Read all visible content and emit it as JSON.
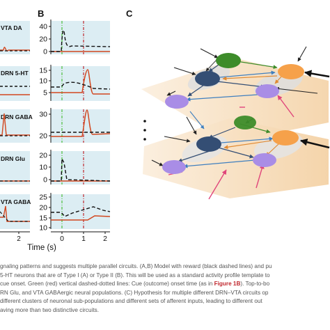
{
  "panel_labels": {
    "b": "B",
    "c": "C"
  },
  "shared_xaxis": {
    "label": "Time (s)",
    "ticks": [
      "0",
      "1",
      "2"
    ],
    "left_tick": "2"
  },
  "panels": [
    {
      "name": "VTA DA",
      "yticks": [
        "40",
        "20",
        "0"
      ]
    },
    {
      "name": "DRN 5-HT",
      "yticks": [
        "15",
        "10",
        "5"
      ]
    },
    {
      "name": "DRN GABA",
      "yticks": [
        "30",
        "20"
      ]
    },
    {
      "name": "DRN Glu",
      "yticks": [
        "20",
        "10",
        "0"
      ]
    },
    {
      "name": "VTA GABA",
      "yticks": [
        "25",
        "20",
        "15",
        "10"
      ]
    }
  ],
  "caption": {
    "l1": "gnaling patterns and suggests multiple parallel circuits. (A,B) Model with reward (black dashed lines) and pu",
    "l2": "5-HT neurons that are of Type I (A) or Type II (B). This will be used as a standard activity profile template to",
    "l3a": "cue onset. Green (red) vertical dashed-dotted lines: Cue (outcome) onset time (as in ",
    "l3ref": "Figure 1B",
    "l3b": "). Top-to-bo",
    "l4": "RN Glu, and VTA GABAergic neural populations. (C) Hypothesis for multiple different DRN–VTA circuits op",
    "l5": "different clusters of neuronal sub-populations and different sets of afferent inputs, leading to different out",
    "l6": "aving more than two distinctive circuits."
  },
  "colors": {
    "panel_bg": "#dcedf3",
    "outcome_line": "#c0282e",
    "cue_line": "#4cbe3c",
    "solid_trace": "#d2471f",
    "dashed_trace": "#111111",
    "green_node": "#3d8c2a",
    "navy_node": "#344e74",
    "orange_node": "#f6a14a",
    "purple_node": "#a98de6",
    "plane": "#f7e2c4"
  }
}
